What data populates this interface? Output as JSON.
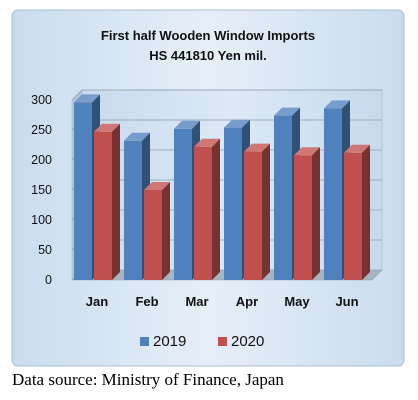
{
  "chart_data": {
    "type": "bar",
    "title": "First half Wooden Window Imports",
    "subtitle": "HS 441810 Yen mil.",
    "categories": [
      "Jan",
      "Feb",
      "Mar",
      "Apr",
      "May",
      "Jun"
    ],
    "series": [
      {
        "name": "2019",
        "values": [
          296,
          232,
          252,
          254,
          274,
          286
        ],
        "color": "#4f81bd"
      },
      {
        "name": "2020",
        "values": [
          247,
          150,
          222,
          214,
          208,
          212
        ],
        "color": "#c0504d"
      }
    ],
    "ylim": [
      0,
      300
    ],
    "yticks": [
      0,
      50,
      100,
      150,
      200,
      250,
      300
    ],
    "grid": true,
    "legend_position": "bottom",
    "bar_style": "3d"
  },
  "source_note": "Data source: Ministry of Finance, Japan"
}
